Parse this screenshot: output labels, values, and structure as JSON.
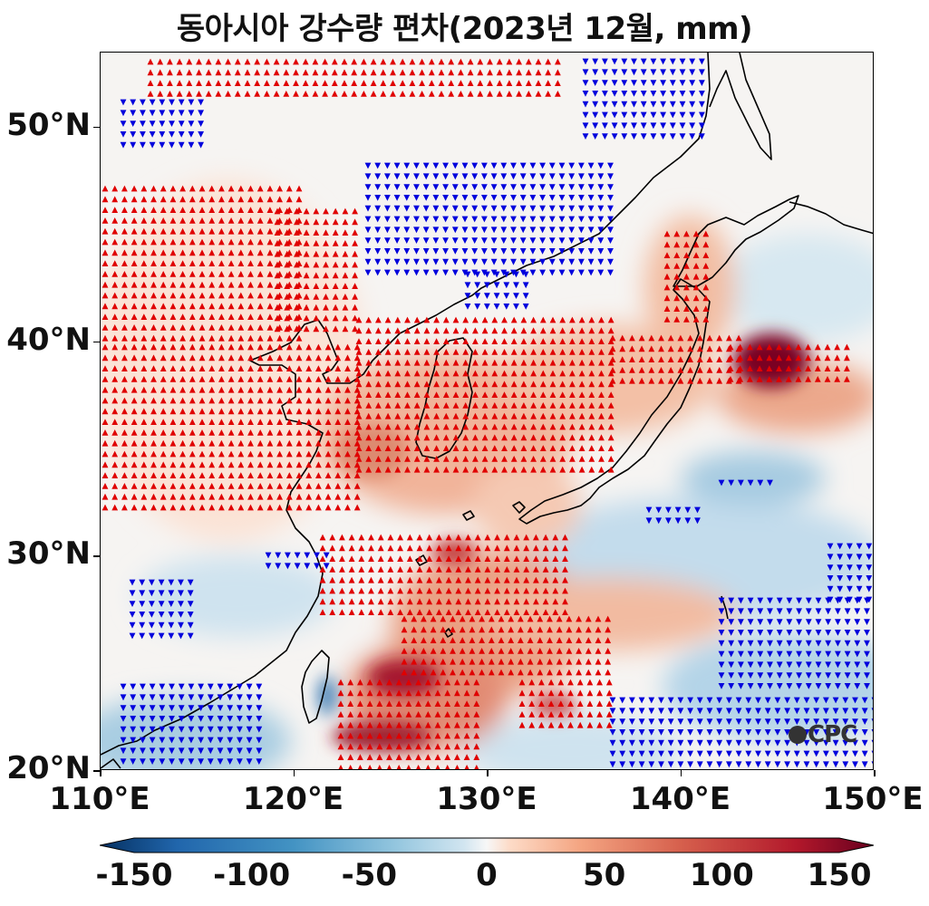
{
  "title": "동아시아 강수량 편차(2023년 12월, mm)",
  "axes": {
    "y_ticks": [
      {
        "label": "20°N",
        "lat": 20
      },
      {
        "label": "30°N",
        "lat": 30
      },
      {
        "label": "40°N",
        "lat": 40
      },
      {
        "label": "50°N",
        "lat": 50
      }
    ],
    "x_ticks": [
      {
        "label": "110°E",
        "lon": 110
      },
      {
        "label": "120°E",
        "lon": 120
      },
      {
        "label": "130°E",
        "lon": 130
      },
      {
        "label": "140°E",
        "lon": 140
      },
      {
        "label": "150°E",
        "lon": 150
      }
    ],
    "lon_range": [
      110,
      150
    ],
    "lat_range": [
      20,
      53.5
    ]
  },
  "colorbar": {
    "min": -165,
    "max": 165,
    "ticks": [
      {
        "label": "-150",
        "value": -150
      },
      {
        "label": "-100",
        "value": -100
      },
      {
        "label": "-50",
        "value": -50
      },
      {
        "label": "0",
        "value": 0
      },
      {
        "label": "50",
        "value": 50
      },
      {
        "label": "100",
        "value": 100
      },
      {
        "label": "150",
        "value": 150
      }
    ],
    "colors": {
      "negative_dark": "#053061",
      "negative": "#2166ac",
      "neutral": "#f7f7f7",
      "positive": "#d6604d",
      "positive_dark": "#67001f"
    }
  },
  "logo_text": "CPC",
  "markers": {
    "positive_color": "#e00000",
    "negative_color": "#0000dd",
    "positive_symbol": "triangle-up",
    "negative_symbol": "triangle-down"
  }
}
